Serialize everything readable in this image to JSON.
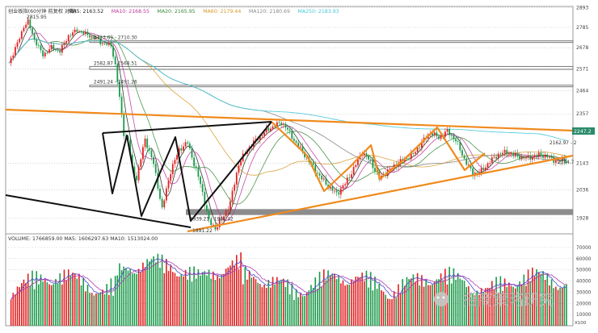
{
  "colors": {
    "candle_up": "#e02020",
    "candle_down": "#1a9a4a",
    "ma5": "#222222",
    "ma10": "#c0359a",
    "ma20": "#3a8a3a",
    "ma60": "#d59a2a",
    "ma120": "#8a8a8a",
    "ma250": "#45c7d6",
    "orange_line": "#f08a1c",
    "black_line": "#111111",
    "grid": "#b8b8b8",
    "gray_band": "#8c8c8c",
    "vol_ma5": "#4a4ad0",
    "vol_ma10": "#b03ab0"
  },
  "header": {
    "title": "创业板指(60分钟 前复权 对数)",
    "ma_labels": [
      "MA5: 2163.52",
      "MA10: 2168.55",
      "MA20: 2165.95",
      "MA60: 2179.44",
      "MA120: 2180.69",
      "MA250: 2183.93"
    ]
  },
  "y_axis_ticks": [
    "2893",
    "2785",
    "2678",
    "2571",
    "2464",
    "2357",
    "2143",
    "2036",
    "1928"
  ],
  "annotations": {
    "high_marker": "2815.95",
    "gap1": "2713.69 - 2710.30",
    "gap2": "2582.87 - 2568.51",
    "gap3": "2491.24 - 2491.26",
    "gap4": "1939.21 - 1961.42",
    "low_marker": "1891.22",
    "right_gap": "2162.97 - 2",
    "right_low": "2144.7",
    "current_price": "2247.2"
  },
  "volume_header": "VOLUME: 1766859.00  MA5: 1606297.63  MA10: 1513024.00",
  "volume_ticks": [
    "70000",
    "60000",
    "50000",
    "40000",
    "30000",
    "20000",
    "10000"
  ],
  "volume_unit": "X100",
  "watermark": "招商策略研究",
  "chart_data": {
    "type": "candlestick",
    "title": "创业板指(60分钟 前复权 对数)",
    "ylim": [
      1870,
      2900
    ],
    "gap_bands": [
      [
        2710.3,
        2713.69
      ],
      [
        2568.51,
        2582.87
      ],
      [
        2491.24,
        2491.26
      ],
      [
        1939.21,
        1961.42
      ]
    ],
    "key_points": {
      "high": 2815.95,
      "low": 1891.22,
      "last": 2163.52
    },
    "price_path": [
      [
        0,
        2600
      ],
      [
        4,
        2700
      ],
      [
        7,
        2790
      ],
      [
        9,
        2815.95
      ],
      [
        12,
        2720
      ],
      [
        16,
        2640
      ],
      [
        20,
        2680
      ],
      [
        24,
        2660
      ],
      [
        28,
        2740
      ],
      [
        32,
        2770
      ],
      [
        36,
        2750
      ],
      [
        40,
        2730
      ],
      [
        44,
        2700
      ],
      [
        48,
        2690
      ],
      [
        50,
        2590
      ],
      [
        52,
        2430
      ],
      [
        54,
        2270
      ],
      [
        56,
        2240
      ],
      [
        58,
        2120
      ],
      [
        60,
        2080
      ],
      [
        64,
        2245
      ],
      [
        68,
        2140
      ],
      [
        72,
        1960
      ],
      [
        76,
        2110
      ],
      [
        80,
        2200
      ],
      [
        84,
        2230
      ],
      [
        87,
        2140
      ],
      [
        90,
        2060
      ],
      [
        94,
        1915
      ],
      [
        97,
        1891.22
      ],
      [
        100,
        1920
      ],
      [
        104,
        1985
      ],
      [
        108,
        2140
      ],
      [
        112,
        2200
      ],
      [
        116,
        2240
      ],
      [
        120,
        2275
      ],
      [
        124,
        2300
      ],
      [
        128,
        2318
      ],
      [
        130,
        2300
      ],
      [
        134,
        2240
      ],
      [
        138,
        2190
      ],
      [
        142,
        2140
      ],
      [
        146,
        2090
      ],
      [
        150,
        2050
      ],
      [
        154,
        2020
      ],
      [
        158,
        2060
      ],
      [
        162,
        2120
      ],
      [
        166,
        2190
      ],
      [
        170,
        2150
      ],
      [
        174,
        2080
      ],
      [
        178,
        2110
      ],
      [
        182,
        2140
      ],
      [
        186,
        2160
      ],
      [
        190,
        2180
      ],
      [
        194,
        2230
      ],
      [
        198,
        2275
      ],
      [
        202,
        2250
      ],
      [
        206,
        2280
      ],
      [
        210,
        2240
      ],
      [
        214,
        2160
      ],
      [
        218,
        2100
      ],
      [
        222,
        2110
      ],
      [
        226,
        2150
      ],
      [
        230,
        2180
      ],
      [
        234,
        2190
      ],
      [
        238,
        2175
      ],
      [
        242,
        2165
      ],
      [
        246,
        2170
      ],
      [
        250,
        2180
      ],
      [
        254,
        2165
      ],
      [
        258,
        2150
      ],
      [
        262,
        2160
      ]
    ],
    "volume_ma5": 1606297.63,
    "volume_ma10": 1513024.0,
    "volume_last": 1766859.0
  }
}
